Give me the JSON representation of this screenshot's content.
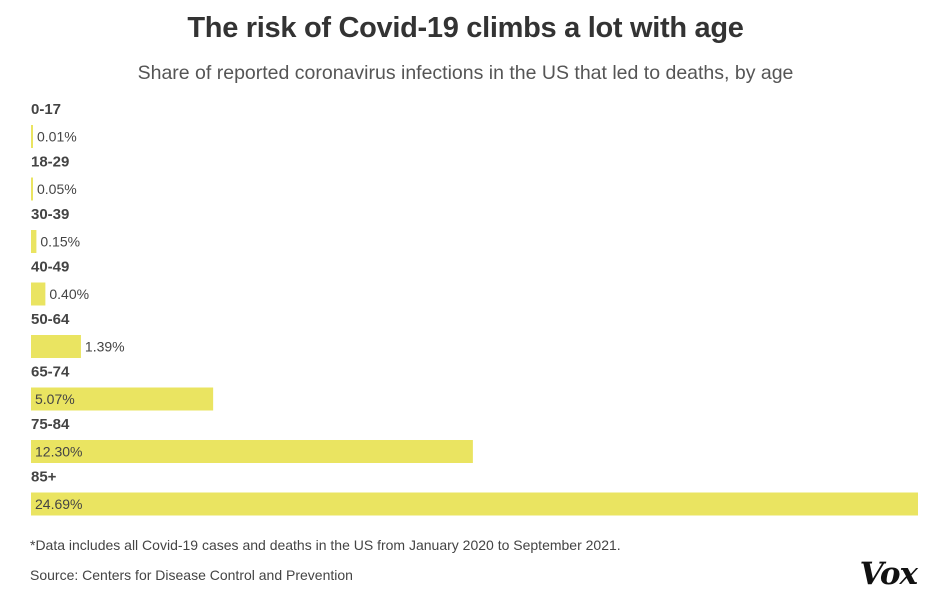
{
  "chart_data": {
    "type": "bar",
    "orientation": "horizontal",
    "title": "The risk of Covid-19 climbs a lot with age",
    "subtitle": "Share of reported coronavirus infections in the US that led to deaths, by age",
    "categories": [
      "0-17",
      "18-29",
      "30-39",
      "40-49",
      "50-64",
      "65-74",
      "75-84",
      "85+"
    ],
    "values": [
      0.01,
      0.05,
      0.15,
      0.4,
      1.39,
      5.07,
      12.3,
      24.69
    ],
    "value_labels": [
      "0.01%",
      "0.05%",
      "0.15%",
      "0.40%",
      "1.39%",
      "5.07%",
      "12.30%",
      "24.69%"
    ],
    "xlim": [
      0,
      24.69
    ],
    "grid": false,
    "legend": "none",
    "bar_color": "#eae461",
    "footnote": "*Data includes all Covid-19 cases and deaths in the US from January 2020 to September 2021.",
    "source": "Source: Centers for Disease Control and Prevention"
  },
  "branding": {
    "logo_text": "Vox"
  }
}
